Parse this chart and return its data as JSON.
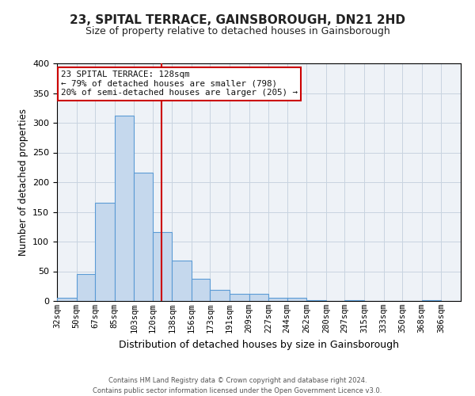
{
  "title": "23, SPITAL TERRACE, GAINSBOROUGH, DN21 2HD",
  "subtitle": "Size of property relative to detached houses in Gainsborough",
  "xlabel": "Distribution of detached houses by size in Gainsborough",
  "ylabel": "Number of detached properties",
  "bin_labels": [
    "32sqm",
    "50sqm",
    "67sqm",
    "85sqm",
    "103sqm",
    "120sqm",
    "138sqm",
    "156sqm",
    "173sqm",
    "191sqm",
    "209sqm",
    "227sqm",
    "244sqm",
    "262sqm",
    "280sqm",
    "297sqm",
    "315sqm",
    "333sqm",
    "350sqm",
    "368sqm",
    "386sqm"
  ],
  "bin_edges": [
    32,
    50,
    67,
    85,
    103,
    120,
    138,
    156,
    173,
    191,
    209,
    227,
    244,
    262,
    280,
    297,
    315,
    333,
    350,
    368,
    386
  ],
  "bar_heights": [
    5,
    46,
    165,
    312,
    216,
    116,
    68,
    38,
    19,
    12,
    12,
    6,
    6,
    2,
    0,
    1,
    0,
    0,
    0,
    2
  ],
  "bar_color": "#c5d8ed",
  "bar_edge_color": "#5b9bd5",
  "vline_color": "#cc0000",
  "vline_x": 128,
  "annotation_title": "23 SPITAL TERRACE: 128sqm",
  "annotation_line1": "← 79% of detached houses are smaller (798)",
  "annotation_line2": "20% of semi-detached houses are larger (205) →",
  "annotation_box_color": "#ffffff",
  "annotation_box_edge": "#cc0000",
  "ylim": [
    0,
    400
  ],
  "yticks": [
    0,
    50,
    100,
    150,
    200,
    250,
    300,
    350,
    400
  ],
  "grid_color": "#c8d4e0",
  "background_color": "#eef2f7",
  "footer_line1": "Contains HM Land Registry data © Crown copyright and database right 2024.",
  "footer_line2": "Contains public sector information licensed under the Open Government Licence v3.0."
}
